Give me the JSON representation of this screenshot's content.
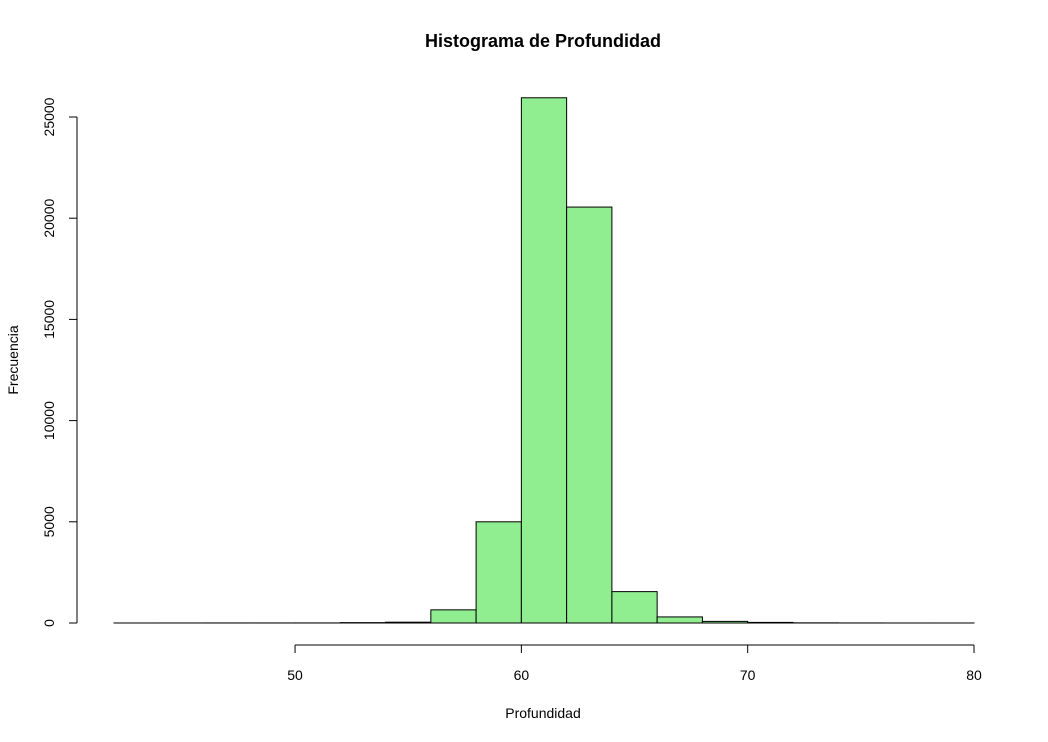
{
  "chart_data": {
    "type": "bar",
    "title": "Histograma de Profundidad",
    "xlabel": "Profundidad",
    "ylabel": "Frecuencia",
    "bin_edges": [
      42,
      44,
      46,
      48,
      50,
      52,
      54,
      56,
      58,
      60,
      62,
      64,
      66,
      68,
      70,
      72,
      74,
      76,
      78,
      80
    ],
    "values": [
      1,
      2,
      3,
      3,
      4,
      18,
      40,
      650,
      5000,
      25950,
      20550,
      1550,
      300,
      80,
      30,
      8,
      3,
      1,
      1
    ],
    "xlim": [
      42,
      80
    ],
    "ylim": [
      0,
      26000
    ],
    "x_ticks": [
      50,
      60,
      70,
      80
    ],
    "y_ticks": [
      0,
      5000,
      10000,
      15000,
      20000,
      25000
    ],
    "x_tick_labels": [
      "50",
      "60",
      "70",
      "80"
    ],
    "y_tick_labels": [
      "0",
      "5000",
      "10000",
      "15000",
      "20000",
      "25000"
    ],
    "grid": false,
    "bar_color": "#90EE90",
    "edge_color": "#000000"
  }
}
